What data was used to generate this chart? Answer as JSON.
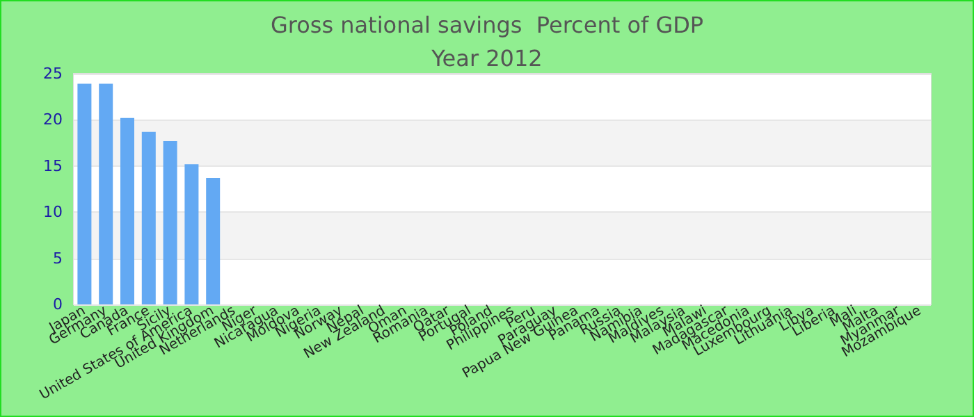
{
  "chart_data": {
    "type": "bar",
    "title": "Gross national savings  Percent of GDP",
    "subtitle": "Year 2012",
    "categories": [
      "Japan",
      "Germany",
      "Canada",
      "France",
      "Sicily",
      "United States of America",
      "United Kingdom",
      "Netherlands",
      "Niger",
      "Nicaragua",
      "Moldova",
      "Nigeria",
      "Norway",
      "Nepal",
      "New Zealand",
      "Oman",
      "Romania",
      "Qatar",
      "Portugal",
      "Poland",
      "Philippines",
      "Peru",
      "Paraguay",
      "Papua New Guinea",
      "Panama",
      "Russia",
      "Namibia",
      "Maldives",
      "Malaysia",
      "Malawi",
      "Madagascar",
      "Macedonia",
      "Luxembourg",
      "Lithuania",
      "Libya",
      "Liberia",
      "Mali",
      "Malta",
      "Myanmar",
      "Mozambique"
    ],
    "values": [
      23.9,
      23.9,
      20.2,
      18.7,
      17.7,
      15.2,
      13.7,
      null,
      null,
      null,
      null,
      null,
      null,
      null,
      null,
      null,
      null,
      null,
      null,
      null,
      null,
      null,
      null,
      null,
      null,
      null,
      null,
      null,
      null,
      null,
      null,
      null,
      null,
      null,
      null,
      null,
      null,
      null,
      null,
      null
    ],
    "color": "#63a9f3",
    "ylim": [
      0,
      25
    ],
    "yticks": [
      0,
      5,
      10,
      15,
      20,
      25
    ],
    "grid": "y"
  }
}
